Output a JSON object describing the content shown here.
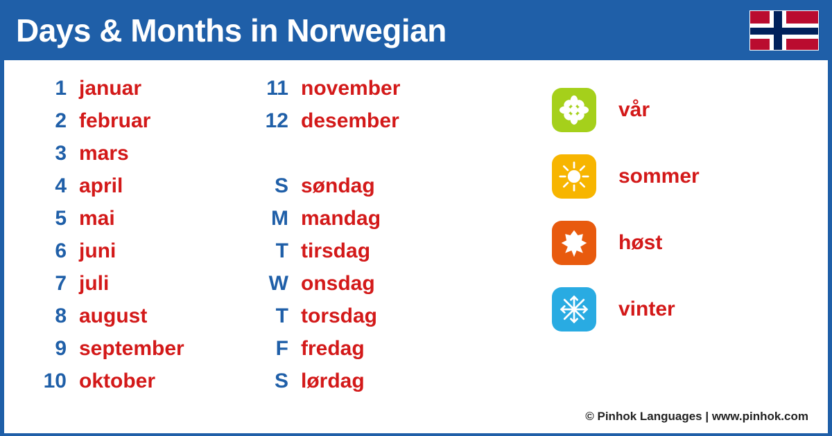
{
  "header": {
    "title": "Days & Months in Norwegian"
  },
  "colors": {
    "header_bg": "#1f5fa8",
    "content_bg": "#ffffff",
    "key_color": "#1f5fa8",
    "val_color": "#d31919",
    "title_color": "#ffffff",
    "flag_red": "#ba0c2f",
    "flag_blue": "#00205b",
    "flag_white": "#ffffff"
  },
  "typography": {
    "title_fontsize": 46,
    "body_fontsize": 30,
    "footer_fontsize": 17,
    "font_weight": 800
  },
  "months_a": [
    {
      "key": "1",
      "val": "januar"
    },
    {
      "key": "2",
      "val": "februar"
    },
    {
      "key": "3",
      "val": "mars"
    },
    {
      "key": "4",
      "val": "april"
    },
    {
      "key": "5",
      "val": "mai"
    },
    {
      "key": "6",
      "val": "juni"
    },
    {
      "key": "7",
      "val": "juli"
    },
    {
      "key": "8",
      "val": "august"
    },
    {
      "key": "9",
      "val": "september"
    },
    {
      "key": "10",
      "val": "oktober"
    }
  ],
  "months_b": [
    {
      "key": "11",
      "val": "november"
    },
    {
      "key": "12",
      "val": "desember"
    }
  ],
  "days": [
    {
      "key": "S",
      "val": "søndag"
    },
    {
      "key": "M",
      "val": "mandag"
    },
    {
      "key": "T",
      "val": "tirsdag"
    },
    {
      "key": "W",
      "val": "onsdag"
    },
    {
      "key": "T",
      "val": "torsdag"
    },
    {
      "key": "F",
      "val": "fredag"
    },
    {
      "key": "S",
      "val": "lørdag"
    }
  ],
  "seasons": [
    {
      "label": "vår",
      "color": "#a5d01b",
      "icon": "flower"
    },
    {
      "label": "sommer",
      "color": "#f7b500",
      "icon": "sun"
    },
    {
      "label": "høst",
      "color": "#e85a0e",
      "icon": "leaf"
    },
    {
      "label": "vinter",
      "color": "#29abe2",
      "icon": "snowflake"
    }
  ],
  "footer": "© Pinhok Languages | www.pinhok.com"
}
